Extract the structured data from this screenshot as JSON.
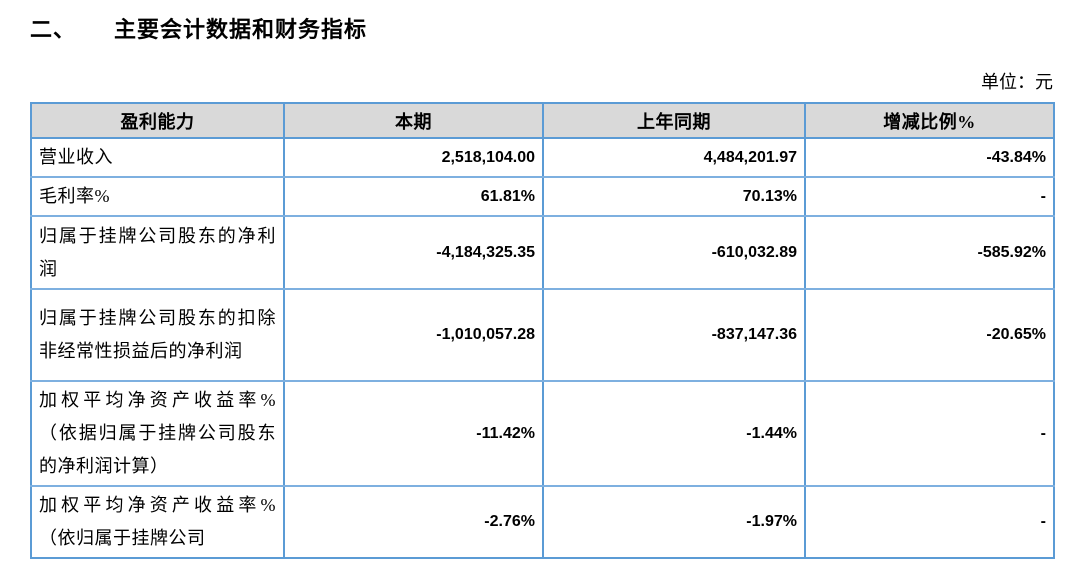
{
  "page": {
    "section_number": "二、",
    "title": "主要会计数据和财务指标",
    "unit_label": "单位：元"
  },
  "table": {
    "headers": [
      "盈利能力",
      "本期",
      "上年同期",
      "增减比例%"
    ],
    "rows": [
      {
        "label": "营业收入",
        "current": "2,518,104.00",
        "prior": "4,484,201.97",
        "change": "-43.84%"
      },
      {
        "label": "毛利率%",
        "current": "61.81%",
        "prior": "70.13%",
        "change": "-"
      },
      {
        "label": "归属于挂牌公司股东的净利润",
        "current": "-4,184,325.35",
        "prior": "-610,032.89",
        "change": "-585.92%"
      },
      {
        "label": "归属于挂牌公司股东的扣除非经常性损益后的净利润",
        "current": "-1,010,057.28",
        "prior": "-837,147.36",
        "change": "-20.65%"
      },
      {
        "label": "加权平均净资产收益率%（依据归属于挂牌公司股东的净利润计算）",
        "current": "-11.42%",
        "prior": "-1.44%",
        "change": "-"
      },
      {
        "label": "加权平均净资产收益率%（依归属于挂牌公司",
        "current": "-2.76%",
        "prior": "-1.97%",
        "change": "-"
      }
    ]
  },
  "colors": {
    "border_strong": "#5B9BD5",
    "border_light": "#7EB0E0",
    "header_bg": "#D9D9D9"
  }
}
